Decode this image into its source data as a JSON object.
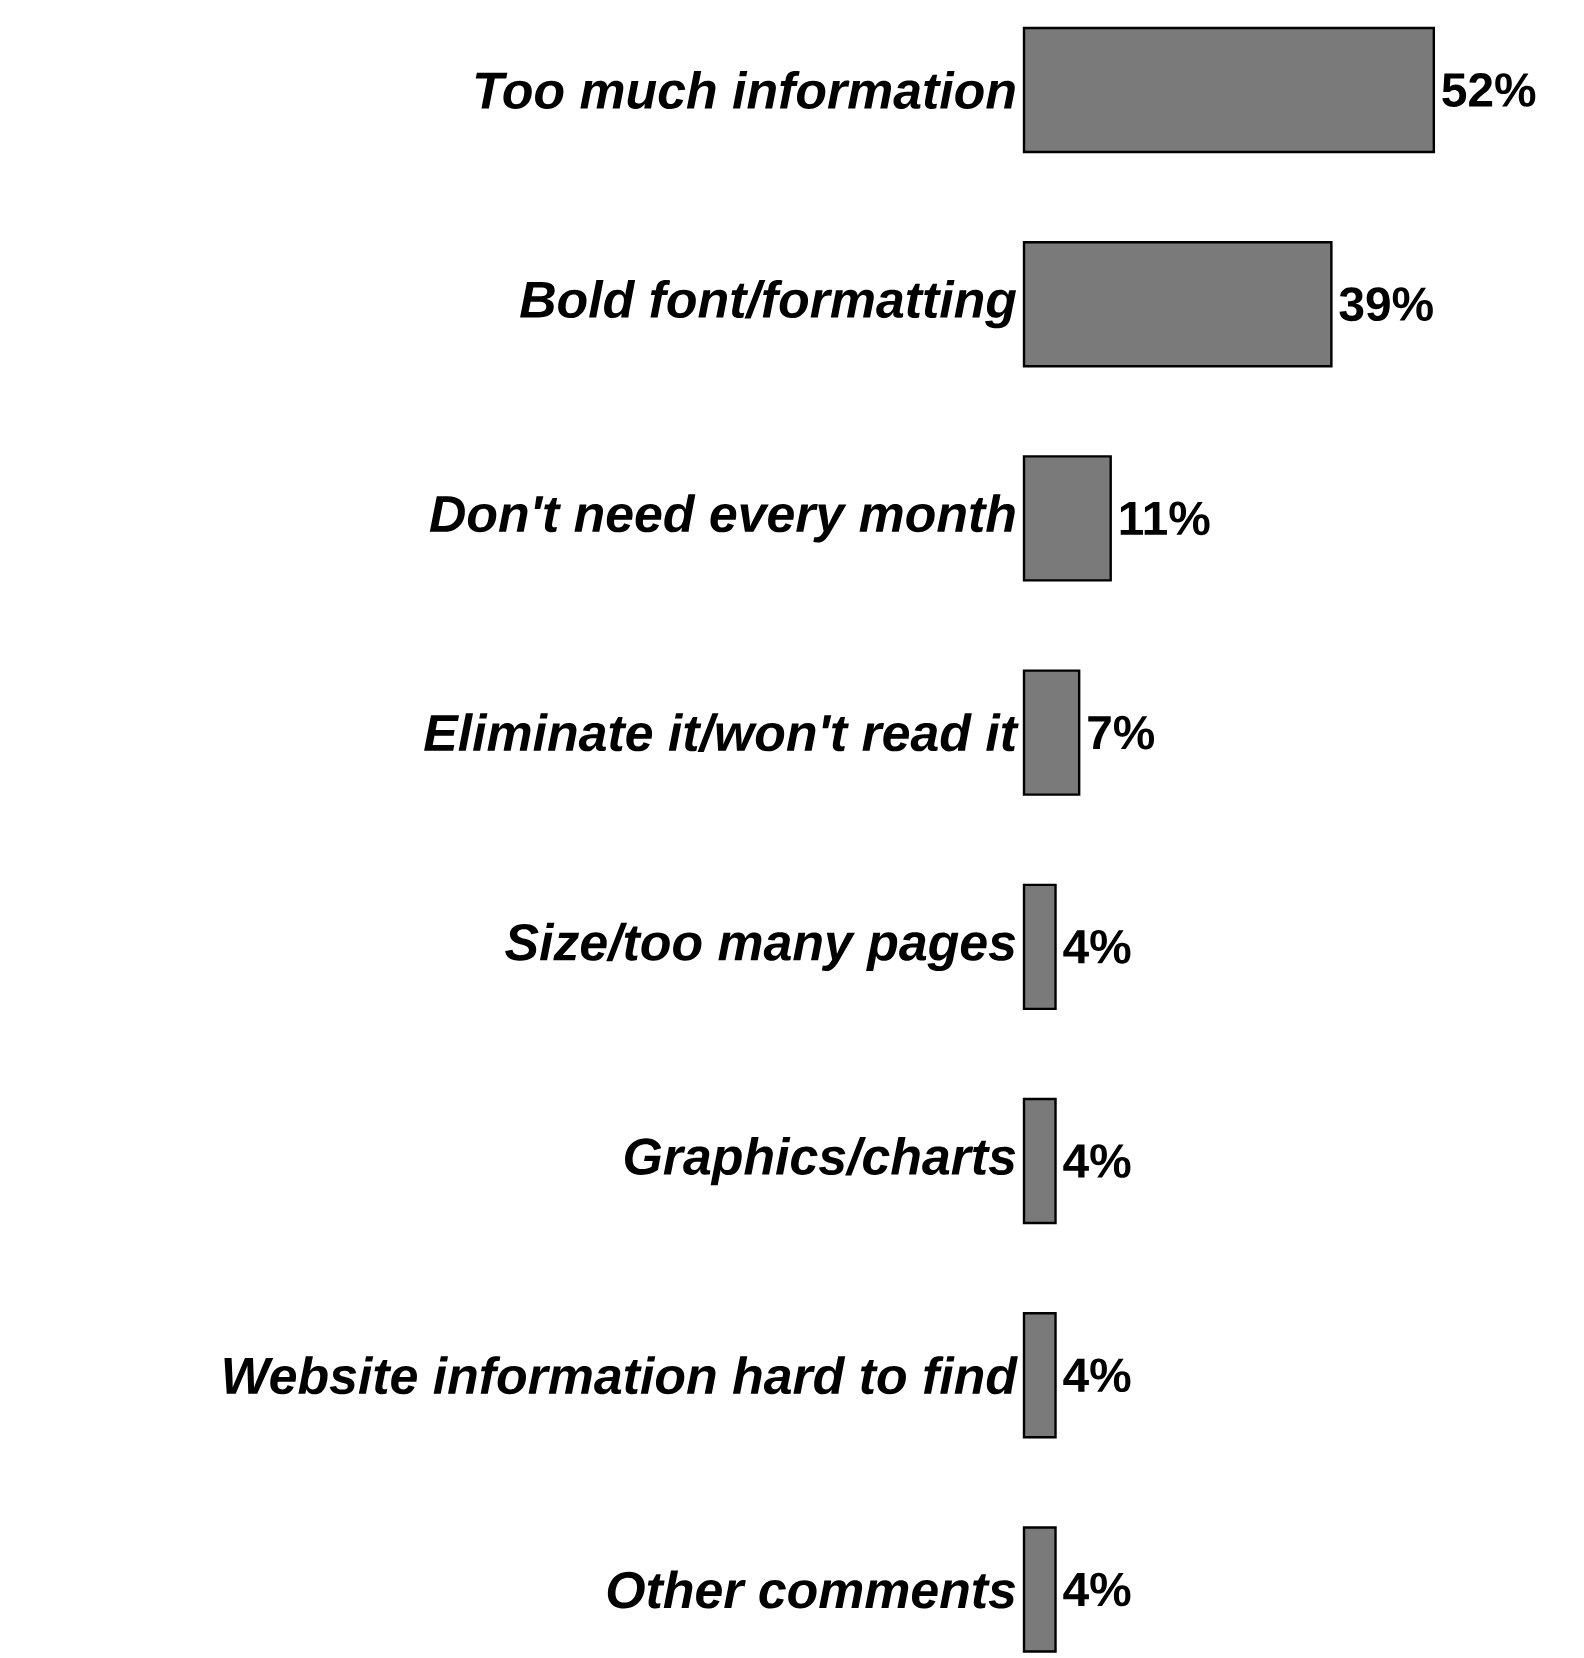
{
  "chart_data": {
    "type": "bar",
    "orientation": "horizontal",
    "categories": [
      "Too much information",
      "Bold font/formatting",
      "Don't need every month",
      "Eliminate it/won't read it",
      "Size/too many pages",
      "Graphics/charts",
      "Website information hard to find",
      "Other comments"
    ],
    "values": [
      52,
      39,
      11,
      7,
      4,
      4,
      4,
      4
    ],
    "value_labels": [
      "52%",
      "39%",
      "11%",
      "7%",
      "4%",
      "4%",
      "4%",
      "4%"
    ],
    "color": "#7a7a7a"
  }
}
